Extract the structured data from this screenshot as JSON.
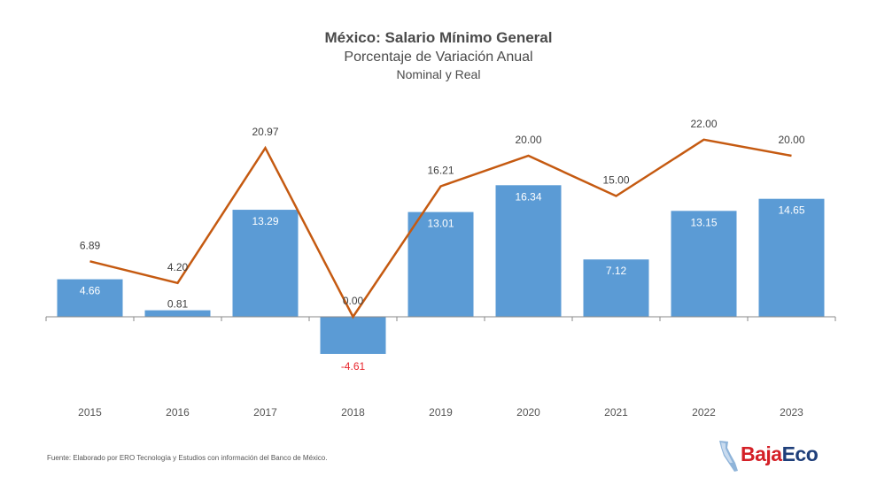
{
  "chart_data": {
    "type": "bar",
    "title": "México: Salario Mínimo General",
    "subtitle": "Porcentaje de Variación Anual",
    "subtitle2": "Nominal y Real",
    "categories": [
      "2015",
      "2016",
      "2017",
      "2018",
      "2019",
      "2020",
      "2021",
      "2022",
      "2023"
    ],
    "series": [
      {
        "kind": "bar",
        "values": [
          4.66,
          0.81,
          13.29,
          -4.61,
          13.01,
          16.34,
          7.12,
          13.15,
          14.65
        ],
        "labels": [
          "4.66",
          "0.81",
          "13.29",
          "-4.61",
          "13.01",
          "16.34",
          "7.12",
          "13.15",
          "14.65"
        ],
        "color": "#5b9bd5"
      },
      {
        "kind": "line",
        "values": [
          6.89,
          4.2,
          20.97,
          0.0,
          16.21,
          20.0,
          15.0,
          22.0,
          20.0
        ],
        "labels": [
          "6.89",
          "4.20",
          "20.97",
          "0.00",
          "16.21",
          "20.00",
          "15.00",
          "22.00",
          "20.00"
        ],
        "color": "#c55a11"
      }
    ],
    "ylim": [
      -11,
      26
    ],
    "grid": false,
    "negative_label_color": "#e8242b"
  },
  "footer": {
    "source": "Fuente: Elaborado por ERO Tecnología y Estudios con información del Banco de México."
  },
  "logo": {
    "part1": "Baja",
    "part2": "Eco",
    "icon": "baja-california-map-icon"
  }
}
